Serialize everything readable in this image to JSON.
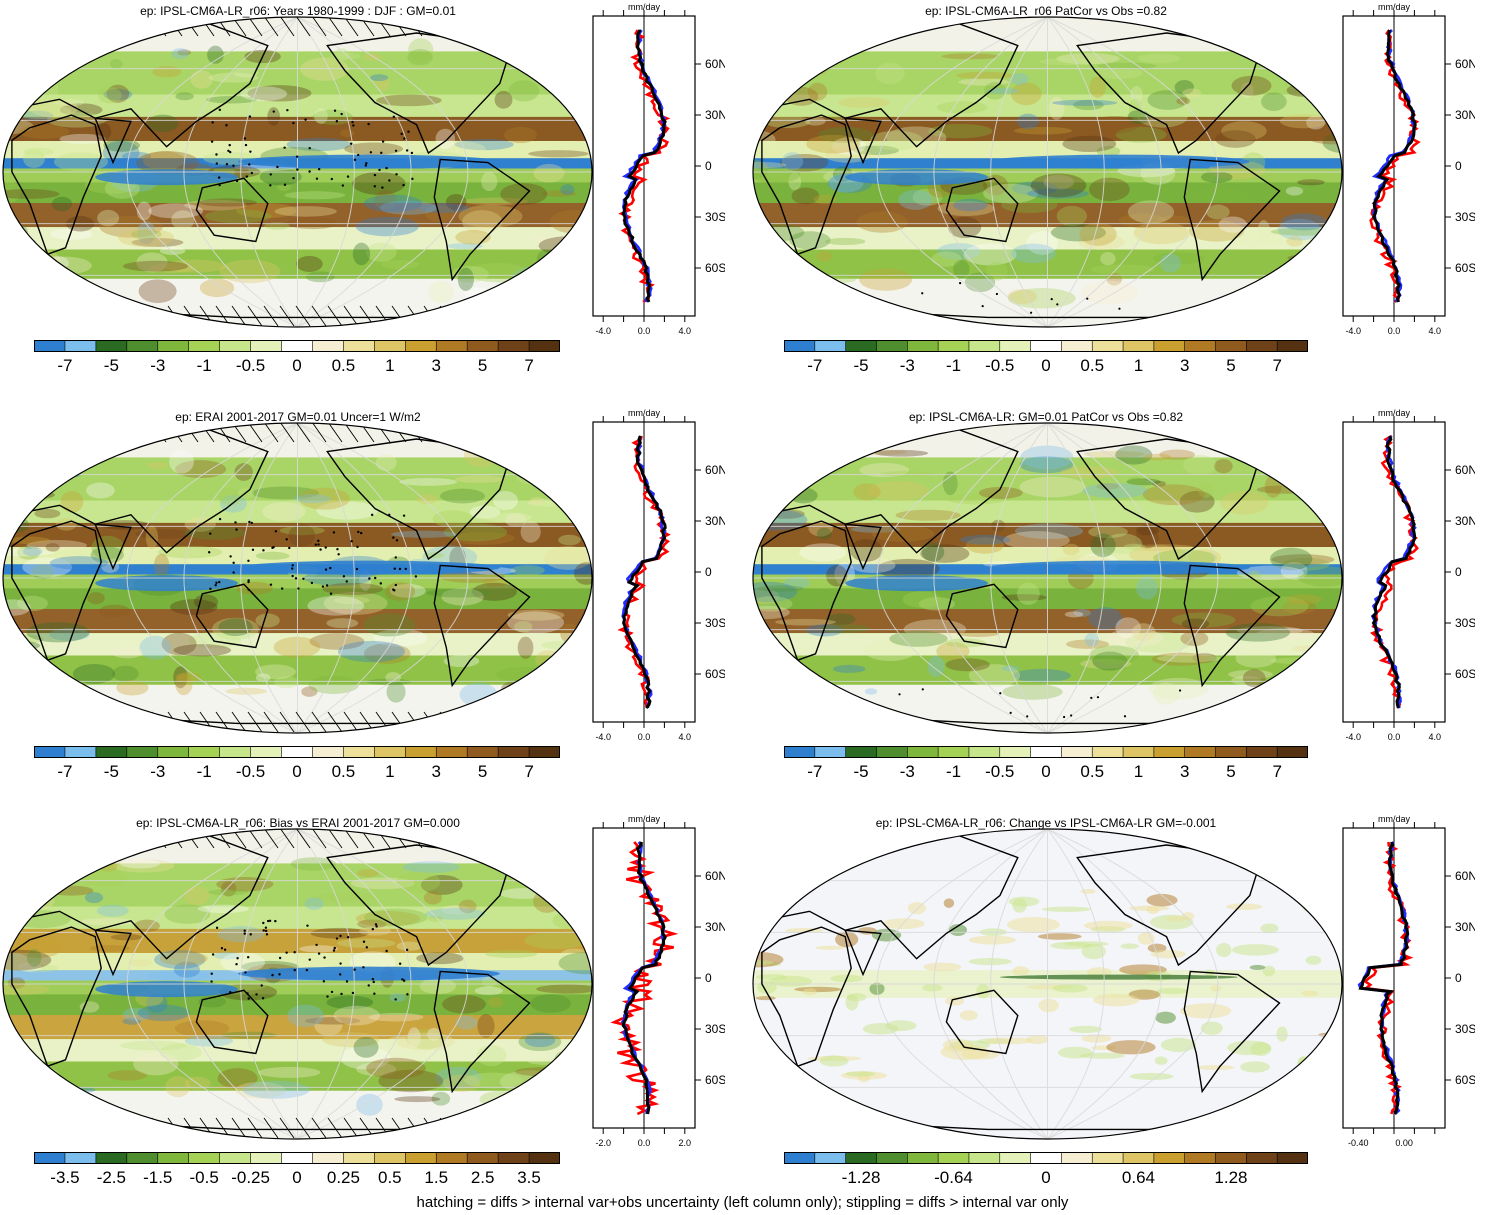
{
  "footer": "hatching = diffs > internal var+obs uncertainty (left column only); stippling = diffs > internal var only",
  "colors": {
    "palette": [
      "#2f7fd0",
      "#7bbdec",
      "#2b6a22",
      "#4f8e2e",
      "#7fb73c",
      "#a5d155",
      "#c7e58a",
      "#e4f2b9",
      "#ffffff",
      "#f5eed2",
      "#ece09a",
      "#ddc566",
      "#c9a030",
      "#b07a24",
      "#8f5a1e",
      "#6e4118",
      "#543110"
    ],
    "red": "#ff0000",
    "blue": "#1f2bff",
    "black": "#000000"
  },
  "panels": [
    {
      "id": "p1",
      "title": "ep: IPSL-CM6A-LR_r06: Years 1980-1999 : DJF : GM=0.01",
      "colorbar_labels": [
        "-7",
        "-5",
        "-3",
        "-1",
        "-0.5",
        "0",
        "0.5",
        "1",
        "3",
        "5",
        "7"
      ],
      "zonal": {
        "unit": "mm/day",
        "xticks": [
          "-4.0",
          "0.0",
          "4.0"
        ],
        "lat_labels": [
          "60N",
          "30N",
          "0",
          "30S",
          "60S"
        ]
      }
    },
    {
      "id": "p2",
      "title": "ep: IPSL-CM6A-LR_r06 PatCor vs Obs =0.82",
      "colorbar_labels": [
        "-7",
        "-5",
        "-3",
        "-1",
        "-0.5",
        "0",
        "0.5",
        "1",
        "3",
        "5",
        "7"
      ],
      "zonal": {
        "unit": "mm/day",
        "xticks": [
          "-4.0",
          "0.0",
          "4.0"
        ],
        "lat_labels": [
          "60N",
          "30N",
          "0",
          "30S",
          "60S"
        ]
      }
    },
    {
      "id": "p3",
      "title": "ep: ERAI 2001-2017 GM=0.01 Uncer=1 W/m2",
      "colorbar_labels": [
        "-7",
        "-5",
        "-3",
        "-1",
        "-0.5",
        "0",
        "0.5",
        "1",
        "3",
        "5",
        "7"
      ],
      "zonal": {
        "unit": "mm/day",
        "xticks": [
          "-4.0",
          "0.0",
          "4.0"
        ],
        "lat_labels": [
          "60N",
          "30N",
          "0",
          "30S",
          "60S"
        ]
      }
    },
    {
      "id": "p4",
      "title": "ep: IPSL-CM6A-LR: GM=0.01 PatCor vs Obs =0.82",
      "colorbar_labels": [
        "-7",
        "-5",
        "-3",
        "-1",
        "-0.5",
        "0",
        "0.5",
        "1",
        "3",
        "5",
        "7"
      ],
      "zonal": {
        "unit": "mm/day",
        "xticks": [
          "-4.0",
          "0.0",
          "4.0"
        ],
        "lat_labels": [
          "60N",
          "30N",
          "0",
          "30S",
          "60S"
        ]
      }
    },
    {
      "id": "p5",
      "title": "ep: IPSL-CM6A-LR_r06: Bias vs ERAI 2001-2017 GM=0.000",
      "colorbar_labels": [
        "-3.5",
        "-2.5",
        "-1.5",
        "-0.5",
        "-0.25",
        "0",
        "0.25",
        "0.5",
        "1.5",
        "2.5",
        "3.5"
      ],
      "zonal": {
        "unit": "mm/day",
        "xticks": [
          "-2.0",
          "0.0",
          "2.0"
        ],
        "lat_labels": [
          "60N",
          "30N",
          "0",
          "30S",
          "60S"
        ]
      }
    },
    {
      "id": "p6",
      "title": "ep: IPSL-CM6A-LR_r06: Change vs IPSL-CM6A-LR GM=-0.001",
      "colorbar_labels": [
        "-1.28",
        "-0.64",
        "0",
        "0.64",
        "1.28"
      ],
      "zonal": {
        "unit": "mm/day",
        "xticks": [
          "-0.40",
          "0.00"
        ],
        "lat_labels": [
          "60N",
          "30N",
          "0",
          "30S",
          "60S"
        ]
      }
    }
  ]
}
